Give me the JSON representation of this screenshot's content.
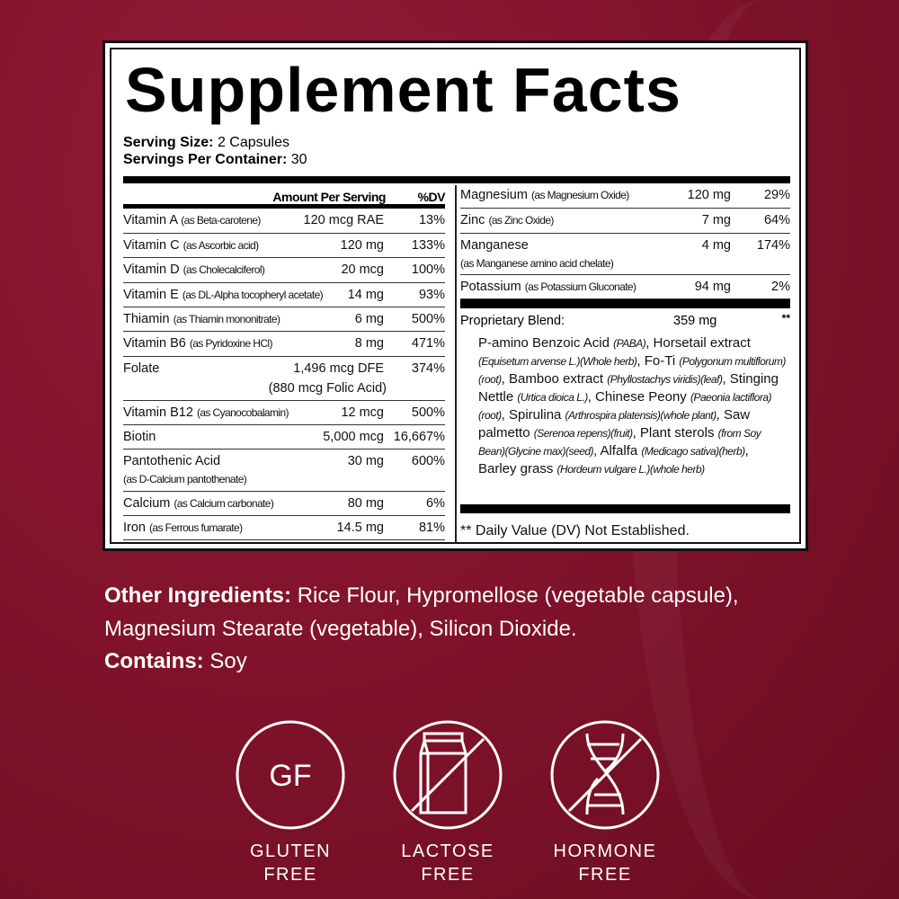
{
  "title": "Supplement Facts",
  "serving": {
    "size_label": "Serving Size:",
    "size": "2 Capsules",
    "per_label": "Servings Per Container:",
    "per": "30"
  },
  "headers": {
    "amount": "Amount Per Serving",
    "dv": "%DV"
  },
  "left_rows": [
    {
      "name": "Vitamin A",
      "source": "(as Beta-carotene)",
      "amount": "120 mcg RAE",
      "dv": "13%"
    },
    {
      "name": "Vitamin C",
      "source": "(as Ascorbic acid)",
      "amount": "120 mg",
      "dv": "133%"
    },
    {
      "name": "Vitamin D",
      "source": "(as Cholecalciferol)",
      "amount": "20 mcg",
      "dv": "100%"
    },
    {
      "name": "Vitamin E",
      "source": "(as DL-Alpha tocopheryl acetate)",
      "amount": "14 mg",
      "dv": "93%"
    },
    {
      "name": "Thiamin",
      "source": "(as Thiamin mononitrate)",
      "amount": "6 mg",
      "dv": "500%"
    },
    {
      "name": "Vitamin B6",
      "source": "(as Pyridoxine HCl)",
      "amount": "8 mg",
      "dv": "471%"
    },
    {
      "name": "Folate",
      "source": "",
      "amount": "1,496 mcg DFE",
      "amount2": "(880 mcg Folic Acid)",
      "dv": "374%"
    },
    {
      "name": "Vitamin B12",
      "source": "(as Cyanocobalamin)",
      "amount": "12 mcg",
      "dv": "500%"
    },
    {
      "name": "Biotin",
      "source": "",
      "amount": "5,000 mcg",
      "dv": "16,667%"
    },
    {
      "name": "Pantothenic Acid",
      "sub": "(as  D-Calcium pantothenate)",
      "amount": "30 mg",
      "dv": "600%"
    },
    {
      "name": "Calcium",
      "source": "(as Calcium carbonate)",
      "amount": "80 mg",
      "dv": "6%"
    },
    {
      "name": "Iron",
      "source": "(as Ferrous fumarate)",
      "amount": "14.5 mg",
      "dv": "81%"
    }
  ],
  "right_rows": [
    {
      "name": "Magnesium",
      "source": "(as Magnesium Oxide)",
      "amount": "120 mg",
      "dv": "29%"
    },
    {
      "name": "Zinc",
      "source": "(as Zinc Oxide)",
      "amount": "7 mg",
      "dv": "64%"
    },
    {
      "name": "Manganese",
      "sub": "(as Manganese amino acid chelate)",
      "amount": "4 mg",
      "dv": "174%"
    },
    {
      "name": "Potassium",
      "source": "(as Potassium Gluconate)",
      "amount": "94 mg",
      "dv": "2%"
    }
  ],
  "blend": {
    "label": "Proprietary Blend:",
    "amount": "359 mg",
    "dv": "**",
    "parts": [
      [
        "P-amino Benzoic Acid ",
        ""
      ],
      [
        "(PABA)",
        "i"
      ],
      [
        ", Horsetail extract ",
        ""
      ],
      [
        "(Equisetum arvense L.)(Whole herb)",
        "i"
      ],
      [
        ", Fo-Ti ",
        ""
      ],
      [
        "(Polygonum multiflorum)(root)",
        "i"
      ],
      [
        ", Bamboo extract ",
        ""
      ],
      [
        "(Phyllostachys viridis)(leaf)",
        "i"
      ],
      [
        ", Stinging Nettle  ",
        ""
      ],
      [
        "(Urtica dioica L.)",
        "i"
      ],
      [
        ", Chinese Peony ",
        ""
      ],
      [
        "(Paeonia lactiflora)(root)",
        "i"
      ],
      [
        ", Spirulina ",
        ""
      ],
      [
        "(Arthrospira platensis)(whole plant)",
        "i"
      ],
      [
        ", Saw palmetto ",
        ""
      ],
      [
        "(Serenoa repens)(fruit)",
        "i"
      ],
      [
        ", Plant sterols ",
        ""
      ],
      [
        "(from Soy Bean)(Glycine max)(seed)",
        "i"
      ],
      [
        ", Alfalfa ",
        ""
      ],
      [
        "(Medicago sativa)(herb)",
        "i"
      ],
      [
        ", Barley grass ",
        ""
      ],
      [
        "(Hordeum vulgare L.)(whole herb)",
        "i"
      ]
    ]
  },
  "footnote": "** Daily Value (DV) Not Established.",
  "other": {
    "label": "Other Ingredients:",
    "text": " Rice Flour, Hypromellose (vegetable capsule), Magnesium Stearate (vegetable), Silicon Dioxide.",
    "contains_label": "Contains:",
    "contains": " Soy"
  },
  "badges": [
    {
      "icon": "gluten-free-icon",
      "glyph": "GF",
      "line1": "GLUTEN",
      "line2": "FREE"
    },
    {
      "icon": "lactose-free-icon",
      "line1": "LACTOSE",
      "line2": "FREE"
    },
    {
      "icon": "hormone-free-icon",
      "line1": "HORMONE",
      "line2": "FREE"
    }
  ],
  "colors": {
    "background": "#7d1229",
    "panel": "#ffffff",
    "text": "#000000"
  }
}
